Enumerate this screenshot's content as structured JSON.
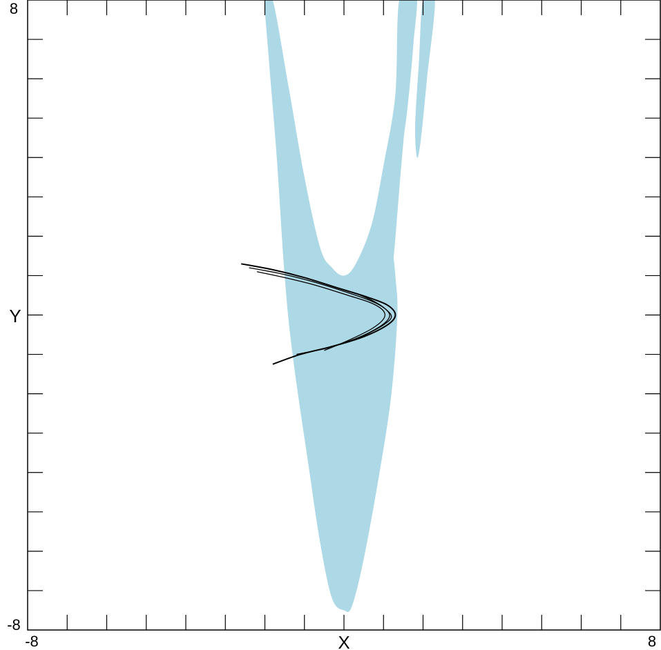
{
  "chart_data": {
    "type": "area",
    "title": "",
    "xlabel": "X",
    "ylabel": "Y",
    "xlim": [
      -8,
      8
    ],
    "ylim": [
      -8,
      8
    ],
    "x_tick_labels": {
      "min": "-8",
      "max": "8"
    },
    "y_tick_labels": {
      "min": "-8",
      "max": "8"
    },
    "x_tick_step": 1,
    "y_tick_step": 1,
    "grid": false,
    "colors": {
      "basin": "#add8e6",
      "attractor": "#000000",
      "axes": "#000000"
    },
    "regions": [
      {
        "shape": "main-basin",
        "color": "#add8e6",
        "outline": [
          [
            -1.8,
            8
          ],
          [
            -1.4,
            5.8
          ],
          [
            -1.0,
            3.5
          ],
          [
            -0.6,
            1.7
          ],
          [
            -0.3,
            1.2
          ],
          [
            0.0,
            1.0
          ],
          [
            0.3,
            1.3
          ],
          [
            0.7,
            2.3
          ],
          [
            1.0,
            3.8
          ],
          [
            1.3,
            5.6
          ],
          [
            1.4,
            8
          ],
          [
            1.8,
            8
          ],
          [
            1.6,
            5.2
          ],
          [
            1.3,
            3.3
          ],
          [
            1.2,
            2.2
          ],
          [
            1.3,
            1.0
          ],
          [
            1.35,
            0.0
          ],
          [
            1.2,
            -2.0
          ],
          [
            0.9,
            -4.0
          ],
          [
            0.5,
            -6.2
          ],
          [
            0.2,
            -7.4
          ],
          [
            0.0,
            -7.5
          ],
          [
            -0.3,
            -7.2
          ],
          [
            -0.6,
            -5.8
          ],
          [
            -0.9,
            -3.8
          ],
          [
            -1.3,
            -1.0
          ],
          [
            -1.5,
            1.0
          ],
          [
            -1.7,
            4.0
          ],
          [
            -1.9,
            6.5
          ],
          [
            -2.0,
            8
          ]
        ]
      },
      {
        "shape": "right-strip",
        "color": "#add8e6",
        "outline": [
          [
            1.6,
            8
          ],
          [
            1.85,
            8
          ],
          [
            1.65,
            6.0
          ],
          [
            1.45,
            3.8
          ],
          [
            1.2,
            1.0
          ],
          [
            1.05,
            1.8
          ],
          [
            1.25,
            4.5
          ],
          [
            1.45,
            6.5
          ]
        ]
      },
      {
        "shape": "far-right-strip",
        "color": "#add8e6",
        "outline": [
          [
            2.0,
            8
          ],
          [
            2.3,
            8
          ],
          [
            2.1,
            6.0
          ],
          [
            1.95,
            4.5
          ],
          [
            1.85,
            4.0
          ],
          [
            1.8,
            4.8
          ],
          [
            1.9,
            6.5
          ]
        ]
      }
    ],
    "series": [
      {
        "color": "#000000",
        "points": [
          [
            -2.6,
            1.3
          ],
          [
            -1.8,
            1.15
          ],
          [
            -1.0,
            0.95
          ],
          [
            -0.2,
            0.7
          ],
          [
            0.6,
            0.45
          ],
          [
            1.1,
            0.25
          ],
          [
            1.3,
            0.0
          ],
          [
            1.1,
            -0.25
          ],
          [
            0.5,
            -0.55
          ],
          [
            -0.3,
            -0.8
          ],
          [
            -1.1,
            -1.0
          ],
          [
            -1.8,
            -1.25
          ]
        ]
      },
      {
        "color": "#000000",
        "points": [
          [
            -2.4,
            1.2
          ],
          [
            -1.6,
            1.05
          ],
          [
            -0.8,
            0.85
          ],
          [
            0.0,
            0.6
          ],
          [
            0.7,
            0.35
          ],
          [
            1.05,
            0.15
          ],
          [
            1.15,
            -0.05
          ],
          [
            0.9,
            -0.3
          ],
          [
            0.3,
            -0.6
          ],
          [
            -0.5,
            -0.85
          ],
          [
            -1.2,
            -1.0
          ]
        ]
      },
      {
        "color": "#000000",
        "points": [
          [
            -2.2,
            1.1
          ],
          [
            -1.5,
            0.95
          ],
          [
            -0.7,
            0.75
          ],
          [
            0.1,
            0.5
          ],
          [
            0.7,
            0.3
          ],
          [
            1.0,
            0.1
          ],
          [
            1.0,
            -0.1
          ],
          [
            0.7,
            -0.35
          ],
          [
            0.1,
            -0.65
          ],
          [
            -0.5,
            -0.9
          ]
        ]
      },
      {
        "color": "#000000",
        "points": [
          [
            0.3,
            0.55
          ],
          [
            0.75,
            0.35
          ],
          [
            1.05,
            0.15
          ],
          [
            1.2,
            -0.05
          ],
          [
            1.0,
            -0.25
          ],
          [
            0.55,
            -0.5
          ],
          [
            0.3,
            -0.6
          ]
        ]
      }
    ]
  }
}
